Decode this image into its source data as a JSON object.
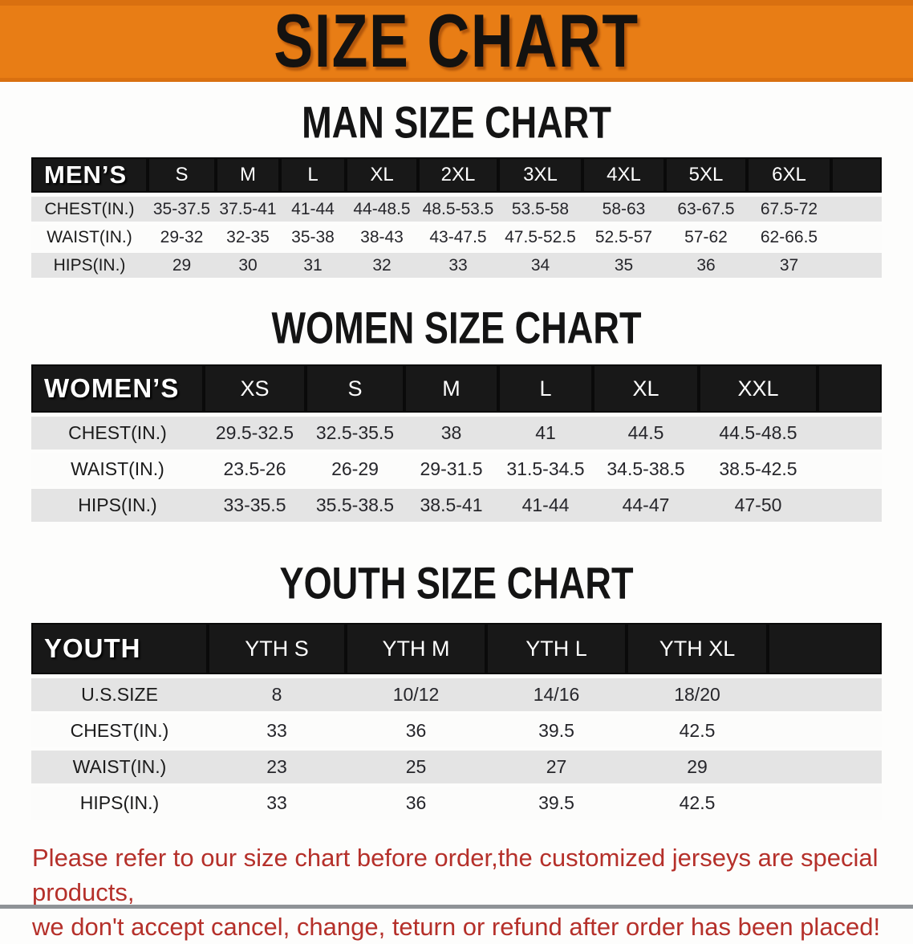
{
  "banner": {
    "title": "SIZE CHART"
  },
  "colors": {
    "banner_orange": "#e87d15",
    "header_bar_black": "#181818",
    "row_stripe_gray": "#e4e4e4",
    "disclaimer_red": "#b5302a"
  },
  "sections": [
    {
      "heading": "MAN SIZE CHART",
      "label": "MEN’S",
      "columns": [
        "S",
        "M",
        "L",
        "XL",
        "2XL",
        "3XL",
        "4XL",
        "5XL",
        "6XL"
      ],
      "rows": [
        {
          "label": "CHEST(IN.)",
          "values": [
            "35-37.5",
            "37.5-41",
            "41-44",
            "44-48.5",
            "48.5-53.5",
            "53.5-58",
            "58-63",
            "63-67.5",
            "67.5-72"
          ]
        },
        {
          "label": "WAIST(IN.)",
          "values": [
            "29-32",
            "32-35",
            "35-38",
            "38-43",
            "43-47.5",
            "47.5-52.5",
            "52.5-57",
            "57-62",
            "62-66.5"
          ]
        },
        {
          "label": "HIPS(IN.)",
          "values": [
            "29",
            "30",
            "31",
            "32",
            "33",
            "34",
            "35",
            "36",
            "37"
          ]
        }
      ]
    },
    {
      "heading": "WOMEN SIZE CHART",
      "label": "WOMEN’S",
      "columns": [
        "XS",
        "S",
        "M",
        "L",
        "XL",
        "XXL"
      ],
      "rows": [
        {
          "label": "CHEST(IN.)",
          "values": [
            "29.5-32.5",
            "32.5-35.5",
            "38",
            "41",
            "44.5",
            "44.5-48.5"
          ]
        },
        {
          "label": "WAIST(IN.)",
          "values": [
            "23.5-26",
            "26-29",
            "29-31.5",
            "31.5-34.5",
            "34.5-38.5",
            "38.5-42.5"
          ]
        },
        {
          "label": "HIPS(IN.)",
          "values": [
            "33-35.5",
            "35.5-38.5",
            "38.5-41",
            "41-44",
            "44-47",
            "47-50"
          ]
        }
      ]
    },
    {
      "heading": "YOUTH SIZE CHART",
      "label": "YOUTH",
      "columns": [
        "YTH S",
        "YTH M",
        "YTH L",
        "YTH XL"
      ],
      "rows": [
        {
          "label": "U.S.SIZE",
          "values": [
            "8",
            "10/12",
            "14/16",
            "18/20"
          ]
        },
        {
          "label": "CHEST(IN.)",
          "values": [
            "33",
            "36",
            "39.5",
            "42.5"
          ]
        },
        {
          "label": "WAIST(IN.)",
          "values": [
            "23",
            "25",
            "27",
            "29"
          ]
        },
        {
          "label": "HIPS(IN.)",
          "values": [
            "33",
            "36",
            "39.5",
            "42.5"
          ]
        }
      ]
    }
  ],
  "footer": {
    "lines": [
      "Please refer to our size chart before order,the customized jerseys are special products,",
      "we don't accept cancel, change, teturn or refund after order has been placed!"
    ]
  }
}
